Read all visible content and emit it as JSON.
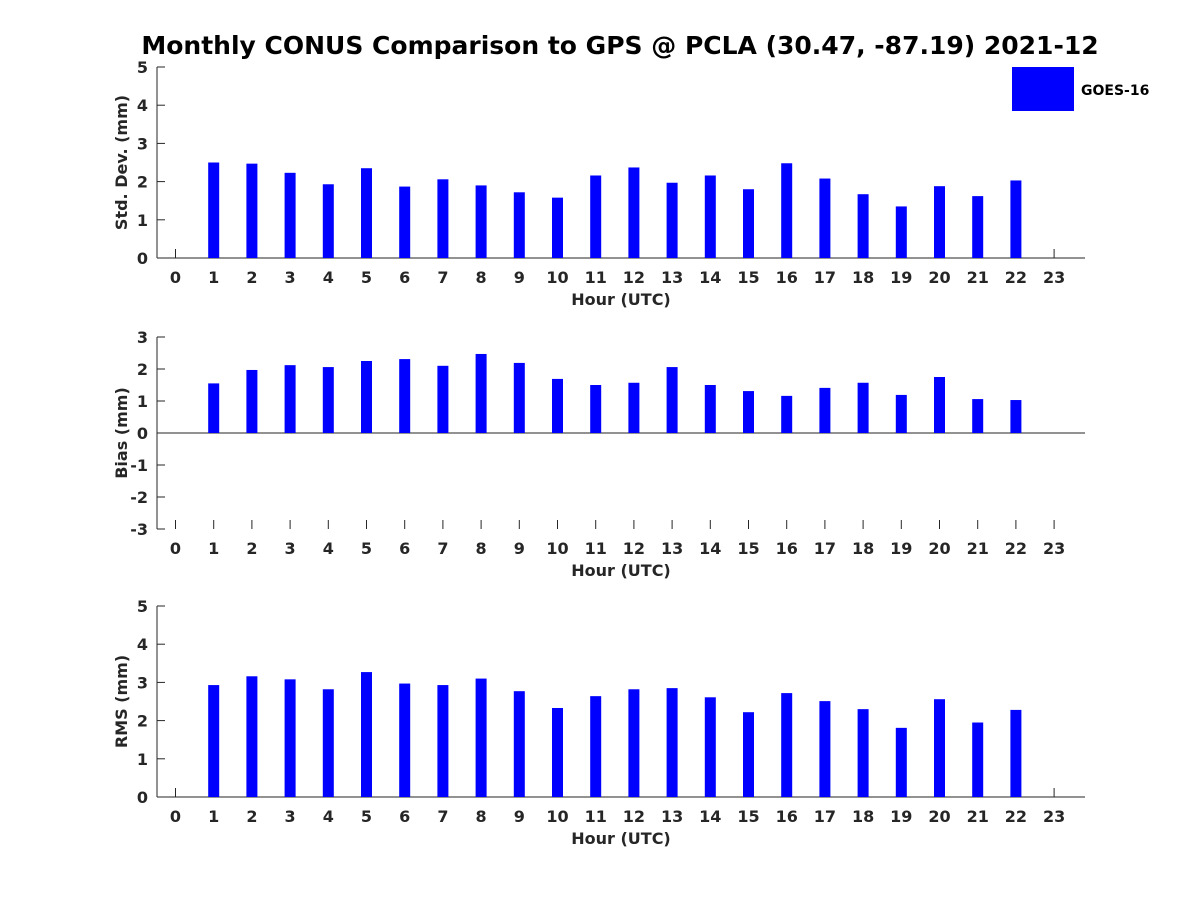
{
  "title": "Monthly CONUS Comparison to GPS @ PCLA (30.47, -87.19) 2021-12",
  "legend": {
    "label": "GOES-16",
    "color": "#0000ff",
    "placement": "top-right"
  },
  "chart_data": [
    {
      "type": "bar",
      "xlabel": "Hour (UTC)",
      "ylabel": "Std. Dev. (mm)",
      "ylim": [
        0,
        5
      ],
      "yticks": [
        "0",
        "1",
        "2",
        "3",
        "4",
        "5"
      ],
      "x": [
        0,
        1,
        2,
        3,
        4,
        5,
        6,
        7,
        8,
        9,
        10,
        11,
        12,
        13,
        14,
        15,
        16,
        17,
        18,
        19,
        20,
        21,
        22,
        23
      ],
      "series": [
        {
          "name": "GOES-16",
          "color": "#0000ff",
          "values": [
            null,
            2.5,
            2.47,
            2.23,
            1.93,
            2.35,
            1.87,
            2.06,
            1.9,
            1.72,
            1.58,
            2.16,
            2.37,
            1.97,
            2.16,
            1.8,
            2.48,
            2.08,
            1.67,
            1.35,
            1.88,
            1.62,
            2.03,
            null
          ]
        }
      ]
    },
    {
      "type": "bar",
      "xlabel": "Hour (UTC)",
      "ylabel": "Bias (mm)",
      "ylim": [
        -3,
        3
      ],
      "yticks": [
        "-3",
        "-2",
        "-1",
        "0",
        "1",
        "2",
        "3"
      ],
      "x": [
        0,
        1,
        2,
        3,
        4,
        5,
        6,
        7,
        8,
        9,
        10,
        11,
        12,
        13,
        14,
        15,
        16,
        17,
        18,
        19,
        20,
        21,
        22,
        23
      ],
      "series": [
        {
          "name": "GOES-16",
          "color": "#0000ff",
          "values": [
            null,
            1.55,
            1.97,
            2.12,
            2.06,
            2.25,
            2.31,
            2.1,
            2.47,
            2.19,
            1.69,
            1.5,
            1.57,
            2.06,
            1.5,
            1.31,
            1.16,
            1.41,
            1.57,
            1.19,
            1.75,
            1.06,
            1.03,
            null
          ]
        }
      ]
    },
    {
      "type": "bar",
      "xlabel": "Hour (UTC)",
      "ylabel": "RMS (mm)",
      "ylim": [
        0,
        5
      ],
      "yticks": [
        "0",
        "1",
        "2",
        "3",
        "4",
        "5"
      ],
      "x": [
        0,
        1,
        2,
        3,
        4,
        5,
        6,
        7,
        8,
        9,
        10,
        11,
        12,
        13,
        14,
        15,
        16,
        17,
        18,
        19,
        20,
        21,
        22,
        23
      ],
      "series": [
        {
          "name": "GOES-16",
          "color": "#0000ff",
          "values": [
            null,
            2.93,
            3.16,
            3.08,
            2.82,
            3.27,
            2.97,
            2.93,
            3.1,
            2.77,
            2.33,
            2.64,
            2.82,
            2.85,
            2.61,
            2.22,
            2.72,
            2.51,
            2.3,
            1.81,
            2.56,
            1.95,
            2.28,
            null
          ]
        }
      ]
    }
  ]
}
